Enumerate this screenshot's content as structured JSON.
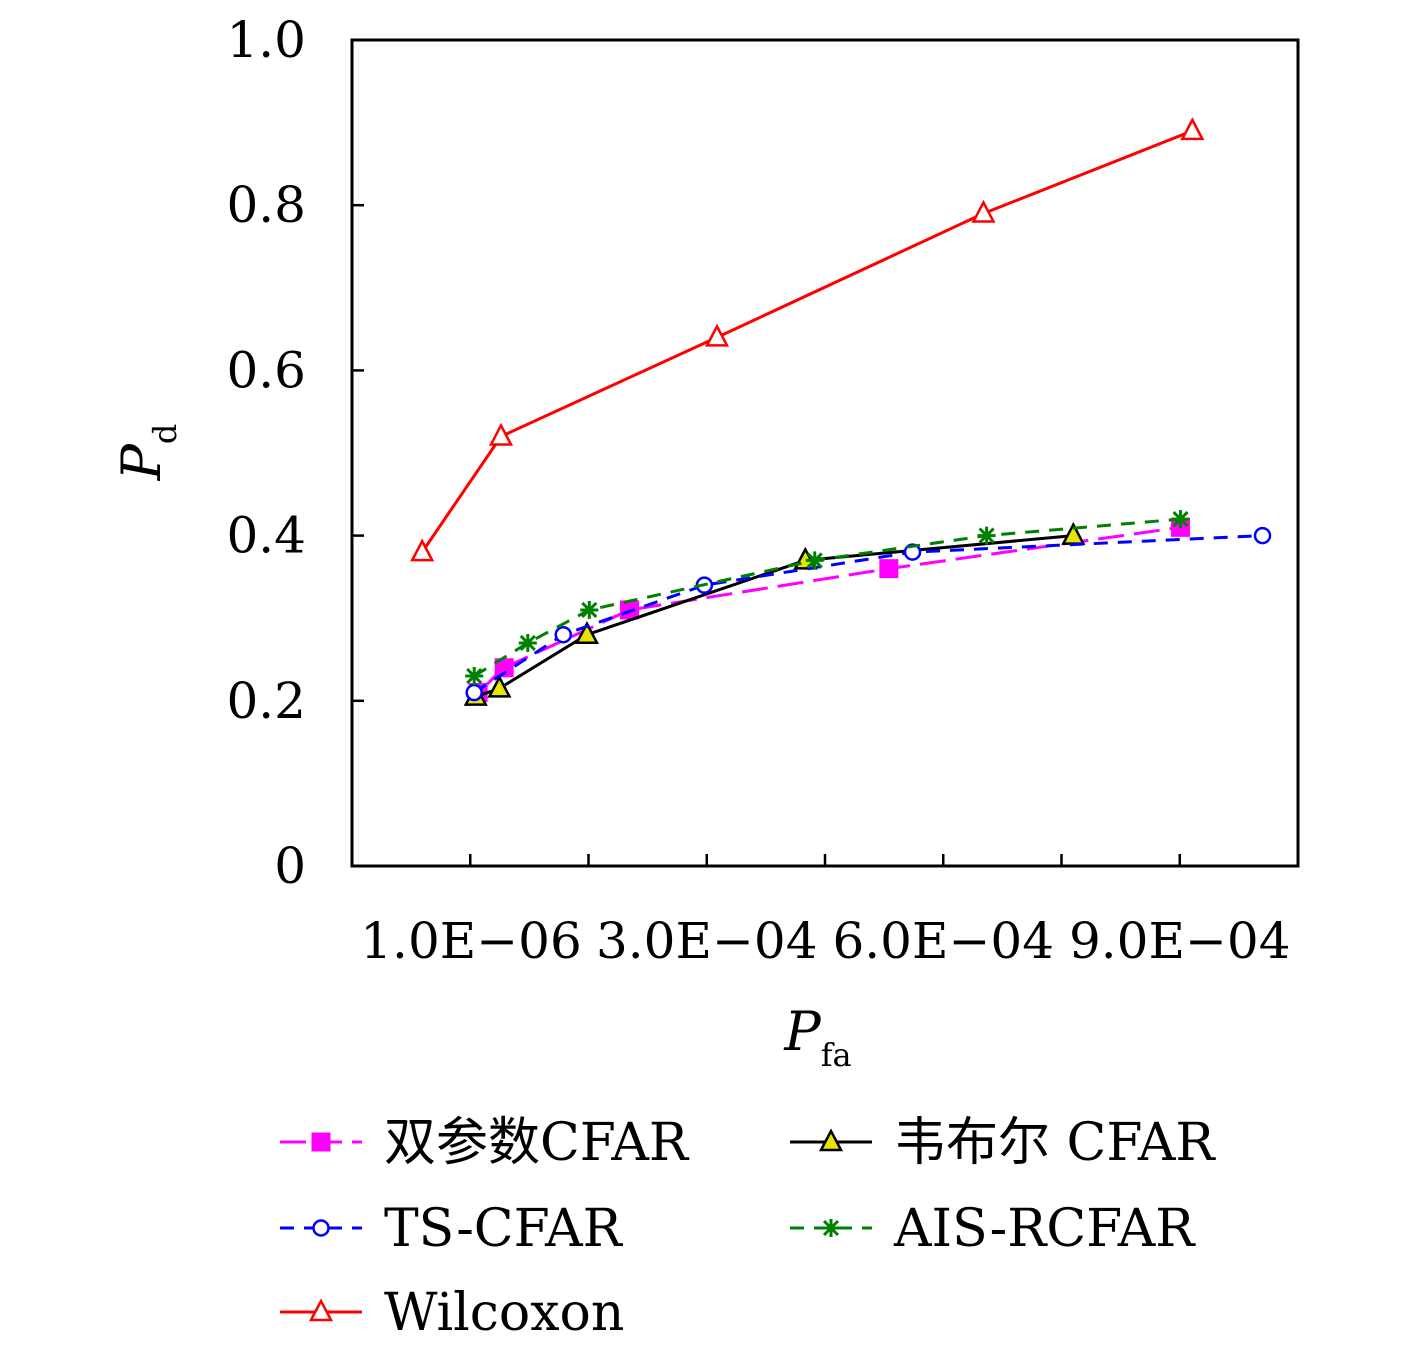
{
  "chart_data": {
    "type": "line",
    "xlabel": {
      "main": "P",
      "sub": "fa"
    },
    "ylabel": {
      "main": "P",
      "sub": "d"
    },
    "xlim": [
      -0.00015,
      0.00105
    ],
    "ylim": [
      0,
      1.0
    ],
    "x_ticks": [
      0.0,
      0.00015,
      0.0003,
      0.00045,
      0.0006,
      0.00075,
      0.0009,
      0.00105
    ],
    "x_tick_labels": [
      {
        "value": 1e-06,
        "label": "1.0E−06"
      },
      {
        "value": 0.0003,
        "label": "3.0E−04"
      },
      {
        "value": 0.0006,
        "label": "6.0E−04"
      },
      {
        "value": 0.0009,
        "label": "9.0E−04"
      }
    ],
    "y_ticks": [
      0,
      0.2,
      0.4,
      0.6,
      0.8,
      1.0
    ],
    "y_tick_labels": [
      "0",
      "0.2",
      "0.4",
      "0.6",
      "0.8",
      "1.0"
    ],
    "grid": false,
    "legend_position": "bottom",
    "series": [
      {
        "name": "双参数CFAR",
        "color": "#ff00ff",
        "marker": "square",
        "dash": "long-dash",
        "x": [
          1e-05,
          4.3e-05,
          0.000202,
          0.000531,
          0.000901
        ],
        "y": [
          0.21,
          0.24,
          0.31,
          0.36,
          0.41
        ]
      },
      {
        "name": "韦布尔 CFAR",
        "color": "#000000",
        "marker": "triangle-filled",
        "dash": "solid",
        "x": [
          7e-06,
          3.7e-05,
          0.000148,
          0.000425,
          0.000765
        ],
        "y": [
          0.205,
          0.215,
          0.28,
          0.37,
          0.4
        ]
      },
      {
        "name": "TS-CFAR",
        "color": "#0000ff",
        "marker": "circle",
        "dash": "dashed",
        "x": [
          5e-06,
          0.000118,
          0.000297,
          0.000561,
          0.001005
        ],
        "y": [
          0.21,
          0.28,
          0.34,
          0.38,
          0.4
        ]
      },
      {
        "name": "AIS-RCFAR",
        "color": "#008000",
        "marker": "star",
        "dash": "dashed",
        "x": [
          5e-06,
          7.3e-05,
          0.000151,
          0.000437,
          0.000655,
          0.000901
        ],
        "y": [
          0.23,
          0.27,
          0.31,
          0.37,
          0.4,
          0.42
        ]
      },
      {
        "name": "Wilcoxon",
        "color": "#ff0000",
        "marker": "triangle",
        "dash": "solid",
        "x": [
          -6.1e-05,
          3.9e-05,
          0.000313,
          0.000651,
          0.000916
        ],
        "y": [
          0.38,
          0.52,
          0.64,
          0.79,
          0.89
        ]
      }
    ]
  }
}
